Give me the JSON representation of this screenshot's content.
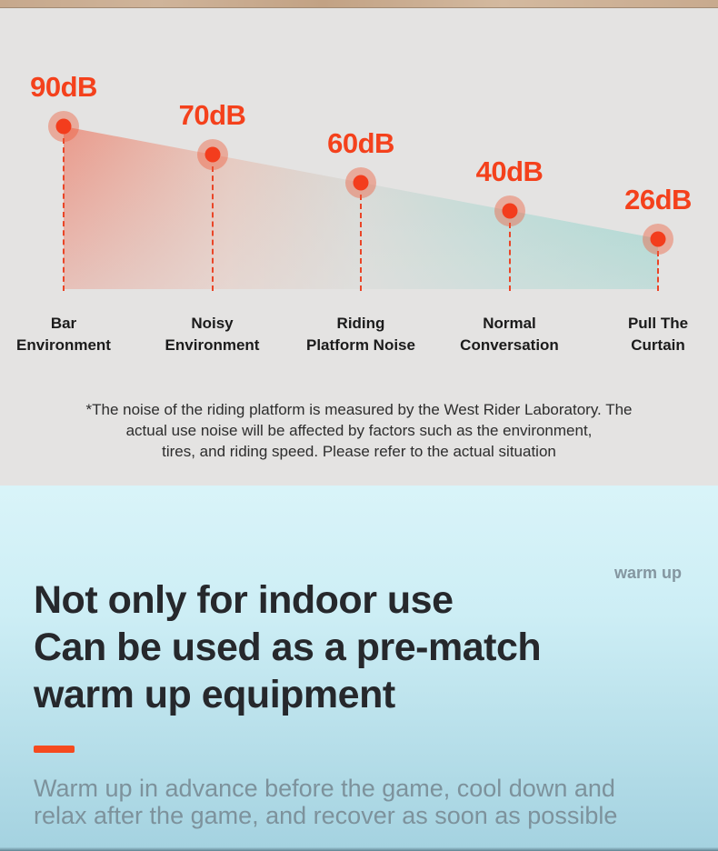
{
  "chart_section": {
    "disclaimer": "*The noise of the riding platform is measured by the West Rider Laboratory. The\nactual use noise will be affected by factors such as the environment,\ntires, and riding speed. Please refer to the actual situation"
  },
  "chart_data": {
    "type": "line",
    "title": "",
    "unit": "dB",
    "categories": [
      "Bar Environment",
      "Noisy Environment",
      "Riding Platform Noise",
      "Normal Conversation",
      "Pull The Curtain"
    ],
    "values": [
      90,
      70,
      60,
      40,
      26
    ],
    "point_labels": [
      "90dB",
      "70dB",
      "60dB",
      "40dB",
      "26dB"
    ],
    "category_labels": [
      "Bar\nEnvironment",
      "Noisy\nEnvironment",
      "Riding\nPlatform Noise",
      "Normal\nConversation",
      "Pull The\nCurtain"
    ],
    "legend": "none",
    "grid": "off",
    "layout": "descending left-to-right wedge, gradient fill red-to-teal, dashed droplines",
    "colors": {
      "accent_orange": "#f4411c",
      "dot_inner": "#f33d1d",
      "dot_halo": "rgba(238,90,58,0.42)",
      "wedge_left": "#f04b2d",
      "wedge_right": "#64cbc0"
    }
  },
  "warmup_section": {
    "tag": "warm up",
    "heading": "Not only for indoor use\nCan be used as a pre-match\nwarm up equipment",
    "paragraph": "Warm up in advance before the game, cool down and\nrelax after the game, and recover as soon as possible",
    "accent_color": "#f54a1f"
  }
}
